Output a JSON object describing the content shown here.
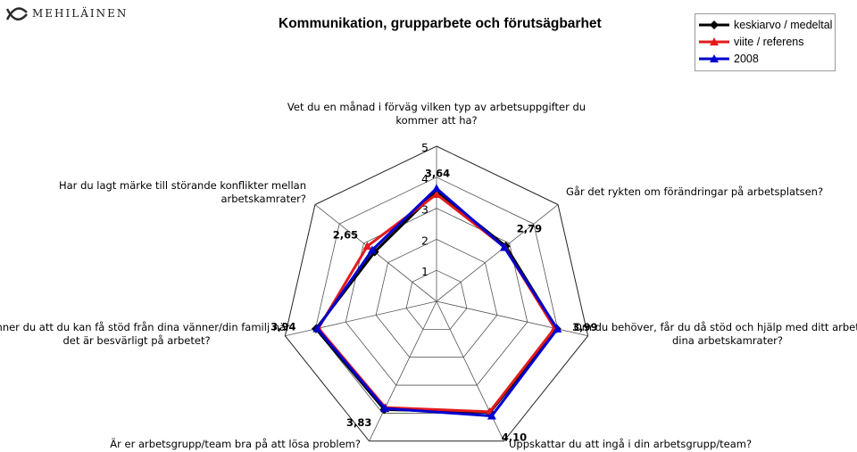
{
  "header": {
    "logo_text": "MEHILÄINEN"
  },
  "chart_data": {
    "type": "radar",
    "title": "Kommunikation, grupparbete och förutsägbarhet",
    "categories": [
      "Vet du en månad i förväg vilken typ av arbetsuppgifter du kommer att ha?",
      "Går det rykten om förändringar på arbetsplatsen?",
      "Om du behöver, får du då stöd och hjälp med ditt arbete av dina arbetskamrater?",
      "Uppskattar du att ingå i din arbetsgrupp/team?",
      "Är er arbetsgrupp/team bra på att lösa problem?",
      "Känner du att du kan få stöd från dina vänner/din familj när det är besvärligt på arbetet?",
      "Har du lagt märke till störande konflikter mellan arbetskamrater?"
    ],
    "category_lines": [
      [
        "Vet du en månad i förväg vilken typ av arbetsuppgifter du",
        "kommer att ha?"
      ],
      [
        "Går det rykten om förändringar på arbetsplatsen?"
      ],
      [
        "Om du behöver, får du då stöd och hjälp med ditt arbete av",
        "dina arbetskamrater?"
      ],
      [
        "Uppskattar du att ingå i din arbetsgrupp/team?"
      ],
      [
        "Är er arbetsgrupp/team bra på att lösa problem?"
      ],
      [
        "Känner du att du kan få stöd från dina vänner/din familj när",
        "det är besvärligt på arbetet?"
      ],
      [
        "Har du lagt märke till störande konflikter mellan",
        "arbetskamrater?"
      ]
    ],
    "series": [
      {
        "name": "keskiarvo / medeltal",
        "color": "#000000",
        "marker": "diamond",
        "values": [
          3.55,
          2.85,
          3.97,
          3.97,
          3.87,
          3.98,
          2.55
        ]
      },
      {
        "name": "viite / referens",
        "color": "#e41a1c",
        "marker": "triangle",
        "values": [
          3.45,
          2.8,
          3.9,
          3.95,
          3.8,
          3.9,
          2.85
        ]
      },
      {
        "name": "2008",
        "color": "#0000d0",
        "marker": "triangle",
        "values": [
          3.64,
          2.79,
          3.99,
          4.1,
          3.83,
          3.94,
          2.65
        ]
      }
    ],
    "data_labels": [
      "3,64",
      "2,79",
      "3,99",
      "4,10",
      "3,83",
      "3,94",
      "2,65"
    ],
    "rlim": [
      0,
      5
    ],
    "ticks": [
      "1",
      "2",
      "3",
      "4",
      "5"
    ],
    "grid": true,
    "legend_position": "top-right"
  }
}
